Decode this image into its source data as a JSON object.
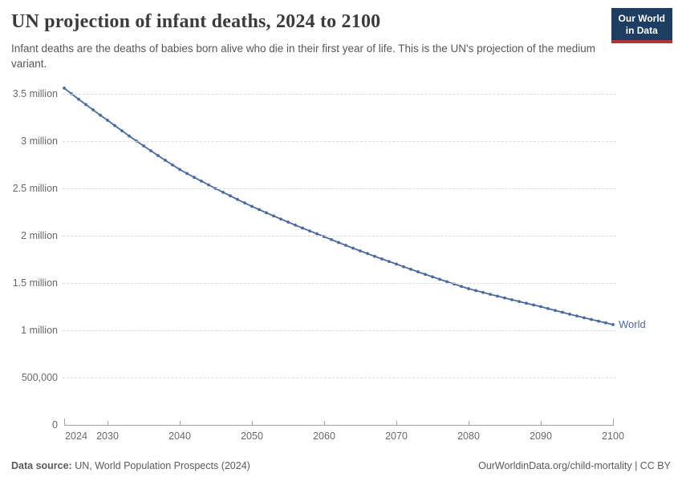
{
  "header": {
    "title": "UN projection of infant deaths, 2024 to 2100",
    "subtitle": "Infant deaths are the deaths of babies born alive who die in their first year of life. This is the UN's projection of the medium variant.",
    "logo_line1": "Our World",
    "logo_line2": "in Data"
  },
  "chart_data": {
    "type": "line",
    "title": "UN projection of infant deaths, 2024 to 2100",
    "xlabel": "",
    "ylabel": "",
    "xlim": [
      2024,
      2100
    ],
    "ylim_millions": [
      0,
      3.5
    ],
    "grid": "dashed-horizontal",
    "legend_position": "end-of-line-label",
    "x_ticks": [
      2024,
      2030,
      2040,
      2050,
      2060,
      2070,
      2080,
      2090,
      2100
    ],
    "y_ticks": [
      {
        "value": 0,
        "label": "0"
      },
      {
        "value": 0.5,
        "label": "500,000"
      },
      {
        "value": 1,
        "label": "1 million"
      },
      {
        "value": 1.5,
        "label": "1.5 million"
      },
      {
        "value": 2,
        "label": "2 million"
      },
      {
        "value": 2.5,
        "label": "2.5 million"
      },
      {
        "value": 3,
        "label": "3 million"
      },
      {
        "value": 3.5,
        "label": "3.5 million"
      }
    ],
    "series": [
      {
        "name": "World",
        "color": "#4c6a9c",
        "marker": "circle",
        "years": [
          2024,
          2025,
          2026,
          2027,
          2028,
          2029,
          2030,
          2031,
          2032,
          2033,
          2034,
          2035,
          2036,
          2037,
          2038,
          2039,
          2040,
          2041,
          2042,
          2043,
          2044,
          2045,
          2046,
          2047,
          2048,
          2049,
          2050,
          2051,
          2052,
          2053,
          2054,
          2055,
          2056,
          2057,
          2058,
          2059,
          2060,
          2061,
          2062,
          2063,
          2064,
          2065,
          2066,
          2067,
          2068,
          2069,
          2070,
          2071,
          2072,
          2073,
          2074,
          2075,
          2076,
          2077,
          2078,
          2079,
          2080,
          2081,
          2082,
          2083,
          2084,
          2085,
          2086,
          2087,
          2088,
          2089,
          2090,
          2091,
          2092,
          2093,
          2094,
          2095,
          2096,
          2097,
          2098,
          2099,
          2100
        ],
        "values_millions": [
          3.56,
          3.501,
          3.443,
          3.386,
          3.33,
          3.274,
          3.22,
          3.164,
          3.109,
          3.054,
          3.001,
          2.949,
          2.897,
          2.847,
          2.797,
          2.748,
          2.7,
          2.658,
          2.617,
          2.577,
          2.537,
          2.497,
          2.459,
          2.421,
          2.383,
          2.346,
          2.31,
          2.276,
          2.242,
          2.209,
          2.176,
          2.144,
          2.112,
          2.081,
          2.05,
          2.02,
          1.99,
          1.959,
          1.928,
          1.898,
          1.868,
          1.839,
          1.811,
          1.782,
          1.754,
          1.727,
          1.7,
          1.672,
          1.645,
          1.618,
          1.591,
          1.565,
          1.539,
          1.514,
          1.489,
          1.464,
          1.44,
          1.42,
          1.4,
          1.38,
          1.361,
          1.342,
          1.323,
          1.304,
          1.286,
          1.268,
          1.25,
          1.23,
          1.21,
          1.19,
          1.17,
          1.151,
          1.132,
          1.114,
          1.096,
          1.078,
          1.06
        ]
      }
    ]
  },
  "footer": {
    "source_label": "Data source:",
    "source_text": " UN, World Population Prospects (2024)",
    "link_text": "OurWorldinData.org/child-mortality | CC BY"
  }
}
